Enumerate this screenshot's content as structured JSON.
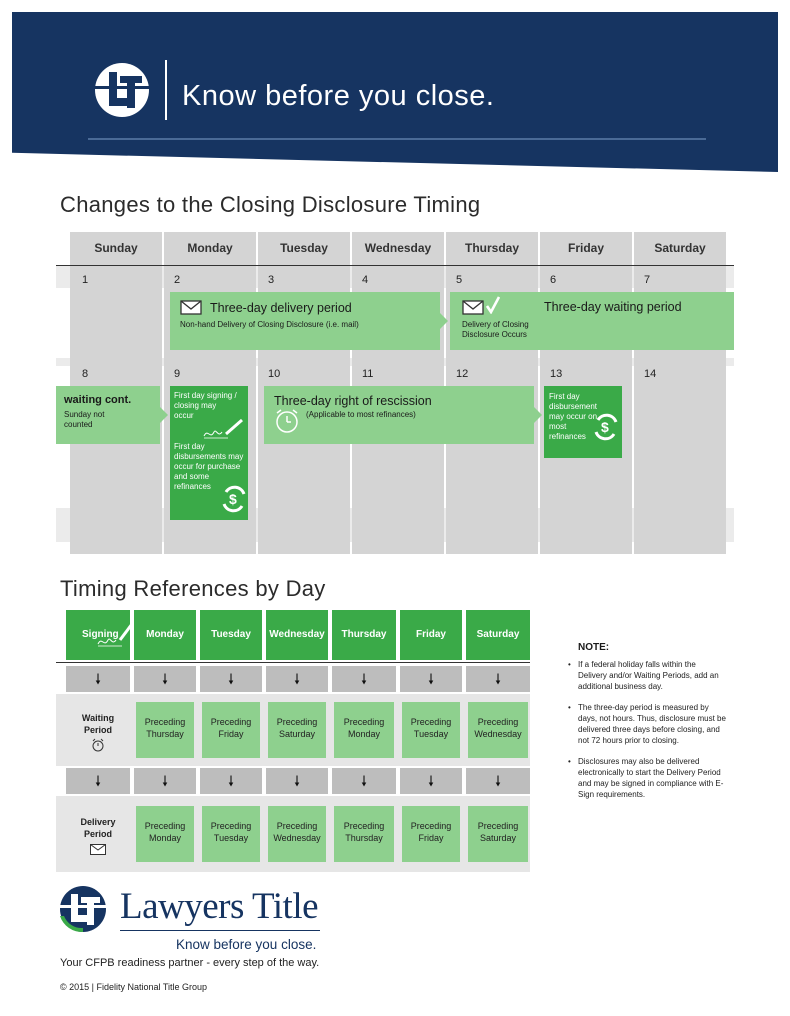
{
  "header": {
    "tagline": "Know before you close.",
    "bg_color": "#163461"
  },
  "calendar": {
    "title": "Changes to the Closing Disclosure Timing",
    "days": [
      "Sunday",
      "Monday",
      "Tuesday",
      "Wednesday",
      "Thursday",
      "Friday",
      "Saturday"
    ],
    "dates_week1": [
      "1",
      "2",
      "3",
      "4",
      "5",
      "6",
      "7"
    ],
    "dates_week2": [
      "8",
      "9",
      "10",
      "11",
      "12",
      "13",
      "14"
    ],
    "delivery_period": {
      "title": "Three-day delivery period",
      "sub": "Non-hand Delivery of Closing Disclosure (i.e. mail)"
    },
    "waiting_period": {
      "title": "Three-day waiting period",
      "sub": "Delivery of Closing Disclosure Occurs"
    },
    "waiting_cont": {
      "title": "waiting cont.",
      "sub": "Sunday not counted"
    },
    "first_day_signing": "First day signing / closing may occur",
    "first_day_disb_purchase": "First day disbursements may occur for purchase and some refinances",
    "rescission": {
      "title": "Three-day right of rescission",
      "sub": "(Applicable to most refinances)"
    },
    "first_day_disb_refi": "First day disbursement may occur on most refinances",
    "colors": {
      "light_green": "#8ed08e",
      "dark_green": "#3aaa48",
      "gray": "#d4d4d4"
    }
  },
  "timing": {
    "title": "Timing References by Day",
    "headers": [
      "Signing",
      "Monday",
      "Tuesday",
      "Wednesday",
      "Thursday",
      "Friday",
      "Saturday"
    ],
    "waiting_label": "Waiting Period",
    "waiting_values": [
      "Preceding Thursday",
      "Preceding Friday",
      "Preceding Saturday",
      "Preceding Monday",
      "Preceding Tuesday",
      "Preceding Wednesday"
    ],
    "delivery_label": "Delivery Period",
    "delivery_values": [
      "Preceding Monday",
      "Preceding Tuesday",
      "Preceding Wednesday",
      "Preceding Thursday",
      "Preceding Friday",
      "Preceding Saturday"
    ],
    "arrow": "🠗"
  },
  "note": {
    "title": "NOTE:",
    "items": [
      "If a federal holiday falls within the Delivery and/or Waiting Periods, add an additional business day.",
      "The three-day period is measured by days, not hours. Thus, disclosure must be delivered three days before closing, and not 72 hours prior to closing.",
      "Disclosures may also be delivered electronically to start the Delivery Period and may be signed in compliance with E-Sign requirements."
    ]
  },
  "footer": {
    "brand": "Lawyers Title",
    "tagline": "Know before you close.",
    "partner": "Your CFPB readiness partner - every step of the way.",
    "copyright": "© 2015 | Fidelity National Title Group"
  }
}
